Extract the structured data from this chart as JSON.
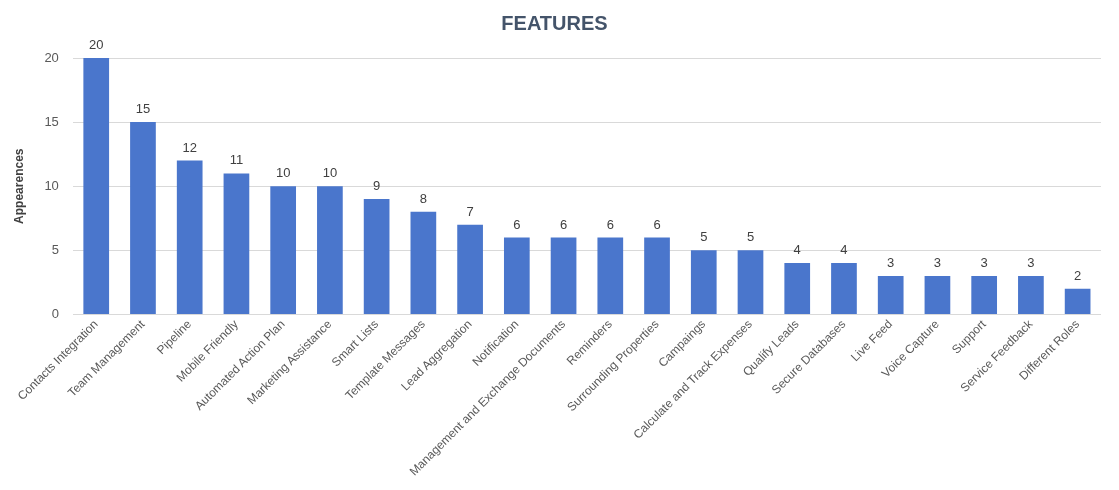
{
  "chart_data": {
    "type": "bar",
    "title": "FEATURES",
    "ylabel": "Appearences",
    "categories": [
      "Contacts Integration",
      "Team Management",
      "Pipeline",
      "Mobile Friendly",
      "Automated Action Plan",
      "Marketing Assistance",
      "Smart Lists",
      "Template Messages",
      "Lead Aggregation",
      "Notification",
      "Management and Exchange Documents",
      "Reminders",
      "Surrounding Properties",
      "Campaings",
      "Calculate and Track Expenses",
      "Qualify Leads",
      "Secure Databases",
      "Live Feed",
      "Voice Capture",
      "Support",
      "Service Feedback",
      "Different Roles"
    ],
    "values": [
      20,
      15,
      12,
      11,
      10,
      10,
      9,
      8,
      7,
      6,
      6,
      6,
      6,
      5,
      5,
      4,
      4,
      3,
      3,
      3,
      3,
      2
    ],
    "color": "#4a76cc",
    "ylim": [
      0,
      20
    ],
    "yticks": [
      0,
      5,
      10,
      15,
      20
    ],
    "grid": "y",
    "data_labels": true,
    "legend": false
  }
}
